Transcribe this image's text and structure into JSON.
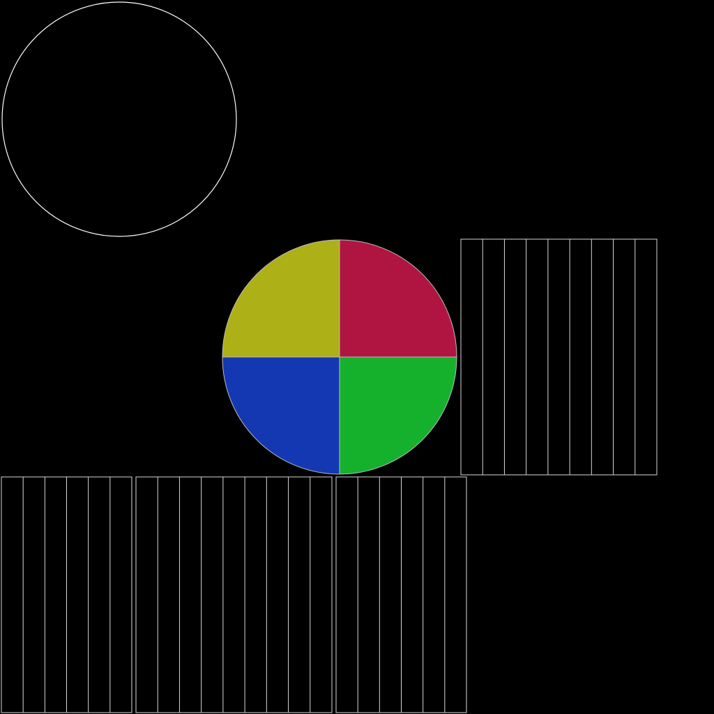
{
  "background": "#000000",
  "line_color": "#ffffff",
  "grid_line_color": "#d8d8d8",
  "quadrant_colors": {
    "top_left": "#adb017",
    "top_right": "#b01541",
    "bottom_left": "#1438b1",
    "bottom_right": "#15b02c"
  },
  "strip_panel_divisions": {
    "right_panel": 9,
    "bottom_left_panel": 6,
    "bottom_middle_panel": 9,
    "bottom_right_panel": 6
  }
}
